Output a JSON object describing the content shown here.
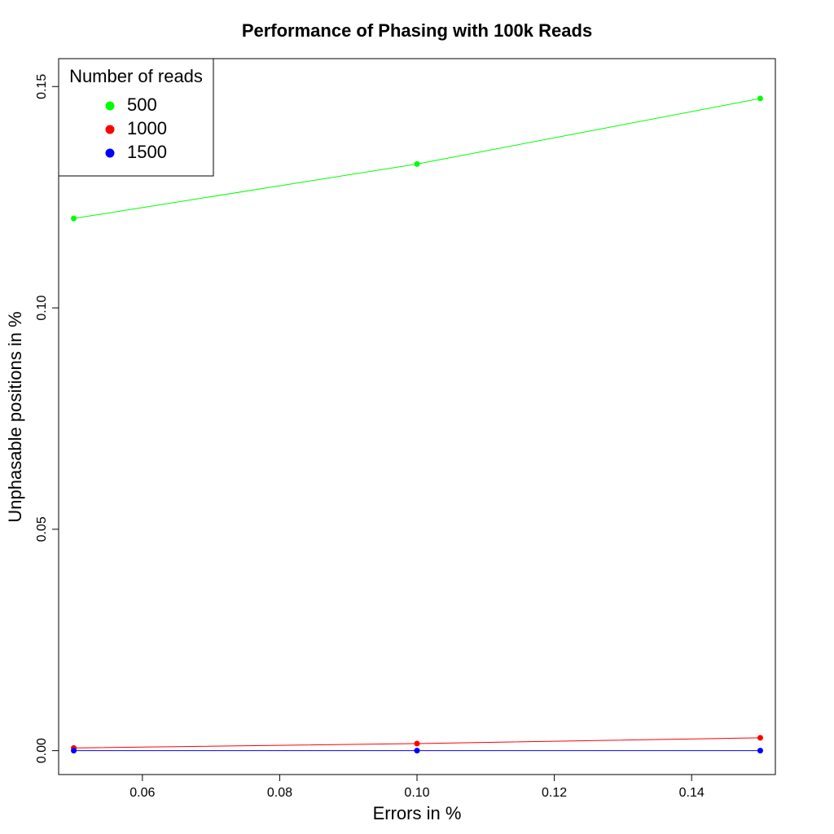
{
  "chart_data": {
    "type": "line",
    "title": "Performance of Phasing with 100k Reads",
    "xlabel": "Errors in %",
    "ylabel": "Unphasable positions in %",
    "x": [
      0.05,
      0.1,
      0.15
    ],
    "xlim": [
      0.0478,
      0.1522
    ],
    "ylim": [
      -0.0054,
      0.1563
    ],
    "x_ticks": [
      0.06,
      0.08,
      0.1,
      0.12,
      0.14
    ],
    "x_tick_labels": [
      "0.06",
      "0.08",
      "0.10",
      "0.12",
      "0.14"
    ],
    "y_ticks": [
      0.0,
      0.05,
      0.1,
      0.15
    ],
    "y_tick_labels": [
      "0.00",
      "0.05",
      "0.10",
      "0.15"
    ],
    "grid": false,
    "legend": {
      "title": "Number of reads",
      "placement": "top-left"
    },
    "series": [
      {
        "name": "500",
        "color": "#00ff00",
        "values": [
          0.1202,
          0.1325,
          0.1473
        ]
      },
      {
        "name": "1000",
        "color": "#ff0000",
        "values": [
          0.0006,
          0.0016,
          0.0029
        ]
      },
      {
        "name": "1500",
        "color": "#0000ff",
        "values": [
          0.0,
          0.0,
          0.0
        ]
      }
    ]
  }
}
